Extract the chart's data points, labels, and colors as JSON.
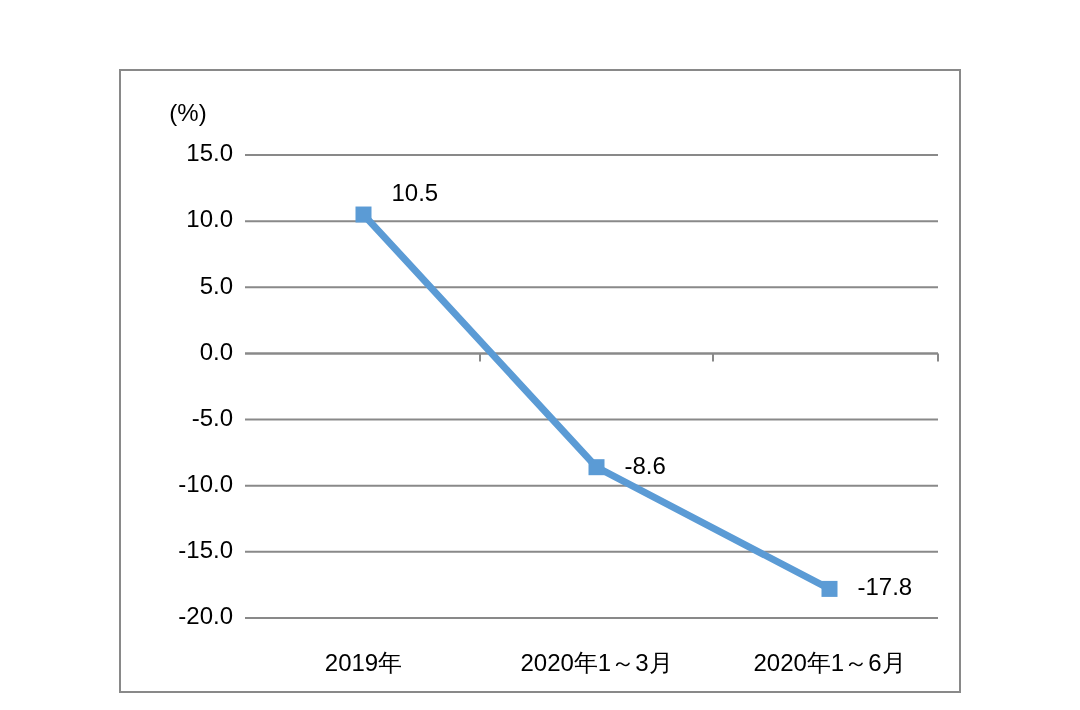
{
  "chart_data": {
    "type": "line",
    "ylabel": "(%)",
    "categories": [
      "2019年",
      "2020年1～3月",
      "2020年1～6月"
    ],
    "series": [
      {
        "color": "#5b9bd5",
        "values": [
          10.5,
          -8.6,
          -17.8
        ]
      }
    ],
    "ylim": [
      -20,
      15
    ],
    "yticks": [
      {
        "value": -20,
        "label": "-20.0"
      },
      {
        "value": -15,
        "label": "-15.0"
      },
      {
        "value": -10,
        "label": "-10.0"
      },
      {
        "value": -5,
        "label": "-5.0"
      },
      {
        "value": 0,
        "label": "0.0"
      },
      {
        "value": 5,
        "label": "5.0"
      },
      {
        "value": 10,
        "label": "10.0"
      },
      {
        "value": 15,
        "label": "15.0"
      }
    ],
    "grid": "y",
    "marker": "square",
    "line_style": "solid",
    "data_labels": true
  }
}
